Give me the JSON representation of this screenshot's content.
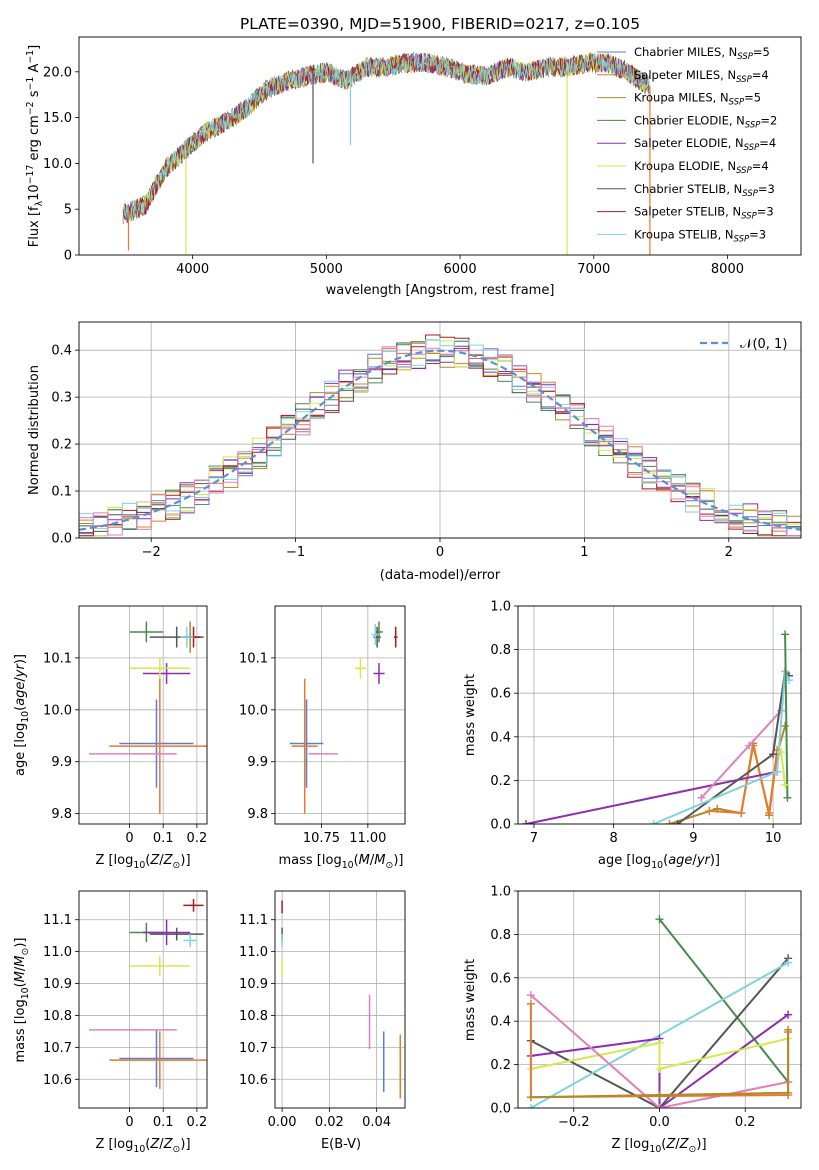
{
  "title": "PLATE=0390, MJD=51900, FIBERID=0217, z=0.105",
  "colors": {
    "Chabrier MILES": "#5b7fd0",
    "Salpeter MILES": "#e8782e",
    "Kroupa MILES": "#b08a2a",
    "Chabrier ELODIE": "#4a8a4a",
    "Salpeter ELODIE": "#8e2bb0",
    "Kroupa ELODIE": "#d4e84a",
    "Chabrier STELIB": "#555555",
    "Salpeter STELIB": "#b01818",
    "Kroupa STELIB": "#7fd3e0",
    "normal": "#5b8fd8",
    "grid": "#b0b0b0"
  },
  "chart_data": [
    {
      "type": "line",
      "panel": "spectrum",
      "xlabel": "wavelength [Angstrom, rest frame]",
      "ylabel": "Flux [fλ10⁻¹⁷ erg cm⁻² s⁻¹ A⁻¹]",
      "xlim": [
        3150,
        8550
      ],
      "ylim": [
        0,
        23.8
      ],
      "xticks": [
        4000,
        5000,
        6000,
        7000,
        8000
      ],
      "yticks": [
        0,
        5,
        10,
        15,
        20
      ],
      "grid": false,
      "legend_position": "top-right",
      "spectrum_x": [
        3500,
        3650,
        3800,
        3950,
        4100,
        4250,
        4400,
        4550,
        4700,
        4850,
        5000,
        5150,
        5300,
        5450,
        5600,
        5750,
        5900,
        6050,
        6200,
        6350,
        6500,
        6650,
        6800,
        6950,
        7100,
        7250,
        7400
      ],
      "spectrum_y": [
        4.5,
        5.5,
        9.5,
        11.5,
        13.5,
        14.5,
        16.0,
        18.0,
        19.0,
        19.5,
        20.0,
        19.0,
        20.5,
        20.5,
        21.0,
        21.0,
        20.5,
        19.8,
        19.5,
        20.5,
        20.0,
        20.5,
        20.5,
        21.0,
        21.0,
        20.0,
        18.5
      ],
      "legend": [
        {
          "label": "Chabrier MILES, N",
          "sub": "SSP",
          "tail": "=5"
        },
        {
          "label": "Salpeter MILES, N",
          "sub": "SSP",
          "tail": "=4"
        },
        {
          "label": "Kroupa MILES, N",
          "sub": "SSP",
          "tail": "=5"
        },
        {
          "label": "Chabrier ELODIE, N",
          "sub": "SSP",
          "tail": "=2"
        },
        {
          "label": "Salpeter ELODIE, N",
          "sub": "SSP",
          "tail": "=4"
        },
        {
          "label": "Kroupa ELODIE, N",
          "sub": "SSP",
          "tail": "=4"
        },
        {
          "label": "Chabrier STELIB, N",
          "sub": "SSP",
          "tail": "=3"
        },
        {
          "label": "Salpeter STELIB, N",
          "sub": "SSP",
          "tail": "=3"
        },
        {
          "label": "Kroupa STELIB, N",
          "sub": "SSP",
          "tail": "=3"
        }
      ]
    },
    {
      "type": "histogram",
      "panel": "residuals",
      "xlabel": "(data-model)/error",
      "ylabel": "Normed distribution",
      "xlim": [
        -2.5,
        2.5
      ],
      "ylim": [
        0,
        0.46
      ],
      "xticks": [
        -2,
        -1,
        0,
        1,
        2
      ],
      "xtick_labels": [
        "−2",
        "−1",
        "0",
        "1",
        "2"
      ],
      "yticks": [
        0.0,
        0.1,
        0.2,
        0.3,
        0.4
      ],
      "ytick_labels": [
        "0.0",
        "0.1",
        "0.2",
        "0.3",
        "0.4"
      ],
      "grid": true,
      "legend_position": "top-right",
      "legend_label": "𝒩(0, 1)",
      "bin_width": 0.1
    },
    {
      "type": "scatter",
      "panel": "age_vs_Z",
      "xlabel": "Z [log₁₀(Z/Z⊙)]",
      "ylabel": "age  [log₁₀(age/yr)]",
      "xlim": [
        -0.15,
        0.23
      ],
      "ylim": [
        9.78,
        10.2
      ],
      "xticks": [
        0.0,
        0.1,
        0.2
      ],
      "yticks": [
        9.8,
        9.9,
        10.0,
        10.1
      ],
      "grid": true,
      "points": [
        {
          "series": "Chabrier MILES",
          "x": 0.08,
          "y": 9.935,
          "xerr": 0.11,
          "yerr": 0.085
        },
        {
          "series": "Salpeter MILES",
          "x": 0.09,
          "y": 9.93,
          "xerr": 0.15,
          "yerr": 0.13
        },
        {
          "series": "Kroupa MILES",
          "x": 0.18,
          "y": 10.14,
          "xerr": 0.03,
          "yerr": 0.03
        },
        {
          "series": "Chabrier ELODIE",
          "x": 0.05,
          "y": 10.15,
          "xerr": 0.05,
          "yerr": 0.02
        },
        {
          "series": "Salpeter ELODIE",
          "x": 0.11,
          "y": 10.07,
          "xerr": 0.07,
          "yerr": 0.02
        },
        {
          "series": "Kroupa ELODIE",
          "x": 0.09,
          "y": 10.08,
          "xerr": 0.09,
          "yerr": 0.02
        },
        {
          "series": "Chabrier STELIB",
          "x": 0.14,
          "y": 10.14,
          "xerr": 0.08,
          "yerr": 0.02
        },
        {
          "series": "Salpeter STELIB",
          "x": 0.19,
          "y": 10.14,
          "xerr": 0.02,
          "yerr": 0.02
        },
        {
          "series": "Kroupa STELIB",
          "x": 0.17,
          "y": 10.14,
          "xerr": 0.02,
          "yerr": 0.02
        },
        {
          "series": "pink",
          "x": 0.01,
          "y": 9.915,
          "xerr": 0.13,
          "yerr": 0.0
        }
      ]
    },
    {
      "type": "scatter",
      "panel": "age_vs_mass",
      "xlabel": "mass [log₁₀(M/M⊙)]",
      "ylabel": "",
      "xlim": [
        10.5,
        11.2
      ],
      "ylim": [
        9.78,
        10.2
      ],
      "xticks": [
        10.75,
        11.0
      ],
      "xtick_labels": [
        "10.75",
        "11.00"
      ],
      "yticks": [
        9.8,
        9.9,
        10.0,
        10.1
      ],
      "grid": true,
      "points": [
        {
          "series": "Chabrier MILES",
          "x": 10.67,
          "y": 9.935,
          "xerr": 0.09,
          "yerr": 0.085
        },
        {
          "series": "Salpeter MILES",
          "x": 10.66,
          "y": 9.93,
          "xerr": 0.07,
          "yerr": 0.13
        },
        {
          "series": "Chabrier ELODIE",
          "x": 11.06,
          "y": 10.15,
          "xerr": 0.02,
          "yerr": 0.02
        },
        {
          "series": "Salpeter ELODIE",
          "x": 11.06,
          "y": 10.07,
          "xerr": 0.03,
          "yerr": 0.02
        },
        {
          "series": "Kroupa ELODIE",
          "x": 10.96,
          "y": 10.08,
          "xerr": 0.03,
          "yerr": 0.02
        },
        {
          "series": "Chabrier STELIB",
          "x": 11.05,
          "y": 10.14,
          "xerr": 0.02,
          "yerr": 0.02
        },
        {
          "series": "Salpeter STELIB",
          "x": 11.15,
          "y": 10.14,
          "xerr": 0.01,
          "yerr": 0.02
        },
        {
          "series": "Kroupa STELIB",
          "x": 11.04,
          "y": 10.145,
          "xerr": 0.02,
          "yerr": 0.02
        },
        {
          "series": "pink",
          "x": 10.76,
          "y": 9.915,
          "xerr": 0.08,
          "yerr": 0.0
        }
      ]
    },
    {
      "type": "line",
      "panel": "weight_vs_age",
      "xlabel": "age  [log₁₀(age/yr)]",
      "ylabel": "mass weight",
      "xlim": [
        6.8,
        10.35
      ],
      "ylim": [
        0,
        1.0
      ],
      "xticks": [
        7,
        8,
        9,
        10
      ],
      "yticks": [
        0.0,
        0.2,
        0.4,
        0.6,
        0.8,
        1.0
      ],
      "ytick_labels": [
        "0.0",
        "0.2",
        "0.4",
        "0.6",
        "0.8",
        "1.0"
      ],
      "grid": true,
      "series": [
        {
          "name": "Kroupa MILES",
          "x": [
            8.7,
            9.3,
            9.6,
            9.75,
            9.95,
            10.05,
            10.15
          ],
          "y": [
            0.0,
            0.07,
            0.05,
            0.37,
            0.04,
            0.32,
            0.45
          ]
        },
        {
          "name": "Salpeter MILES",
          "x": [
            9.2,
            9.6,
            9.75,
            9.95,
            10.05
          ],
          "y": [
            0.06,
            0.05,
            0.36,
            0.05,
            0.34
          ]
        },
        {
          "name": "Salpeter ELODIE",
          "x": [
            6.9,
            10.05
          ],
          "y": [
            0.0,
            0.24
          ]
        },
        {
          "name": "pink",
          "x": [
            9.1,
            9.7,
            10.1
          ],
          "y": [
            0.12,
            0.36,
            0.52
          ]
        },
        {
          "name": "Chabrier STELIB",
          "x": [
            8.8,
            10.0,
            10.15,
            10.2
          ],
          "y": [
            0.0,
            0.32,
            0.7,
            0.68
          ]
        },
        {
          "name": "Kroupa STELIB",
          "x": [
            8.5,
            10.05,
            10.15,
            10.2
          ],
          "y": [
            0.0,
            0.24,
            0.7,
            0.66
          ]
        },
        {
          "name": "Chabrier ELODIE",
          "x": [
            10.15,
            10.18
          ],
          "y": [
            0.87,
            0.12
          ]
        },
        {
          "name": "Kroupa ELODIE",
          "x": [
            10.1,
            10.15
          ],
          "y": [
            0.33,
            0.18
          ]
        }
      ]
    },
    {
      "type": "scatter",
      "panel": "mass_vs_Z",
      "xlabel": "Z [log₁₀(Z/Z⊙)]",
      "ylabel": "mass [log₁₀(M/M⊙)]",
      "xlim": [
        -0.15,
        0.23
      ],
      "ylim": [
        10.51,
        11.19
      ],
      "xticks": [
        0.0,
        0.1,
        0.2
      ],
      "yticks": [
        10.6,
        10.7,
        10.8,
        10.9,
        11.0,
        11.1
      ],
      "grid": true,
      "points": [
        {
          "series": "Chabrier MILES",
          "x": 0.08,
          "y": 10.665,
          "xerr": 0.11,
          "yerr": 0.09
        },
        {
          "series": "Salpeter MILES",
          "x": 0.09,
          "y": 10.66,
          "xerr": 0.15,
          "yerr": 0.09
        },
        {
          "series": "Chabrier ELODIE",
          "x": 0.05,
          "y": 11.06,
          "xerr": 0.05,
          "yerr": 0.03
        },
        {
          "series": "Salpeter ELODIE",
          "x": 0.11,
          "y": 11.06,
          "xerr": 0.07,
          "yerr": 0.04
        },
        {
          "series": "Kroupa ELODIE",
          "x": 0.09,
          "y": 10.955,
          "xerr": 0.09,
          "yerr": 0.03
        },
        {
          "series": "Chabrier STELIB",
          "x": 0.14,
          "y": 11.055,
          "xerr": 0.08,
          "yerr": 0.02
        },
        {
          "series": "Salpeter STELIB",
          "x": 0.19,
          "y": 11.145,
          "xerr": 0.03,
          "yerr": 0.02
        },
        {
          "series": "Kroupa STELIB",
          "x": 0.18,
          "y": 11.035,
          "xerr": 0.02,
          "yerr": 0.02
        },
        {
          "series": "pink",
          "x": 0.01,
          "y": 10.755,
          "xerr": 0.13,
          "yerr": 0.0
        }
      ]
    },
    {
      "type": "scatter",
      "panel": "mass_vs_ebv",
      "xlabel": "E(B-V)",
      "ylabel": "",
      "xlim": [
        -0.003,
        0.052
      ],
      "ylim": [
        10.51,
        11.19
      ],
      "xticks": [
        0.0,
        0.02,
        0.04
      ],
      "xtick_labels": [
        "0.00",
        "0.02",
        "0.04"
      ],
      "yticks": [
        10.6,
        10.7,
        10.8,
        10.9,
        11.0,
        11.1
      ],
      "grid": true,
      "points": [
        {
          "series": "Salpeter MILES",
          "x": 0.05,
          "y": 10.64,
          "xerr": 0.0,
          "yerr": 0.1
        },
        {
          "series": "Chabrier MILES",
          "x": 0.043,
          "y": 10.655,
          "xerr": 0.0,
          "yerr": 0.095
        },
        {
          "series": "pink",
          "x": 0.037,
          "y": 10.78,
          "xerr": 0.0,
          "yerr": 0.085
        },
        {
          "series": "Kroupa ELODIE",
          "x": 0.0,
          "y": 10.95,
          "xerr": 0.0,
          "yerr": 0.03
        },
        {
          "series": "Salpeter STELIB",
          "x": 0.0,
          "y": 11.14,
          "xerr": 0.0,
          "yerr": 0.02
        },
        {
          "series": "Chabrier STELIB",
          "x": 0.0,
          "y": 11.055,
          "xerr": 0.0,
          "yerr": 0.02
        },
        {
          "series": "Kroupa STELIB",
          "x": 0.0,
          "y": 11.035,
          "xerr": 0.0,
          "yerr": 0.02
        }
      ]
    },
    {
      "type": "line",
      "panel": "weight_vs_Z",
      "xlabel": "Z [log₁₀(Z/Z⊙)]",
      "ylabel": "mass weight",
      "xlim": [
        -0.33,
        0.33
      ],
      "ylim": [
        0,
        1.0
      ],
      "xticks": [
        -0.2,
        0.0,
        0.2
      ],
      "xtick_labels": [
        "−0.2",
        "0.0",
        "0.2"
      ],
      "yticks": [
        0.0,
        0.2,
        0.4,
        0.6,
        0.8,
        1.0
      ],
      "ytick_labels": [
        "0.0",
        "0.2",
        "0.4",
        "0.6",
        "0.8",
        "1.0"
      ],
      "grid": true,
      "series": [
        {
          "name": "Chabrier ELODIE",
          "x": [
            0.0,
            0.3
          ],
          "y": [
            0.87,
            0.12
          ]
        },
        {
          "name": "Chabrier STELIB",
          "x": [
            -0.3,
            0.0,
            0.3
          ],
          "y": [
            0.31,
            0.0,
            0.69
          ]
        },
        {
          "name": "Kroupa STELIB",
          "x": [
            -0.3,
            0.3
          ],
          "y": [
            0.0,
            0.67
          ]
        },
        {
          "name": "Salpeter ELODIE",
          "x": [
            -0.3,
            0.0,
            0.0,
            0.3
          ],
          "y": [
            0.24,
            0.32,
            0.0,
            0.43
          ]
        },
        {
          "name": "Kroupa ELODIE",
          "x": [
            -0.3,
            0.0,
            0.0,
            0.3
          ],
          "y": [
            0.18,
            0.3,
            0.18,
            0.32
          ]
        },
        {
          "name": "pink",
          "x": [
            -0.3,
            0.0,
            0.3
          ],
          "y": [
            0.52,
            0.0,
            0.12
          ]
        },
        {
          "name": "Salpeter MILES",
          "x": [
            -0.3,
            -0.3,
            0.3,
            0.3
          ],
          "y": [
            0.48,
            0.05,
            0.06,
            0.36
          ]
        },
        {
          "name": "Kroupa MILES",
          "x": [
            -0.3,
            0.0,
            0.3,
            0.3
          ],
          "y": [
            0.05,
            0.06,
            0.07,
            0.35
          ]
        }
      ]
    }
  ]
}
